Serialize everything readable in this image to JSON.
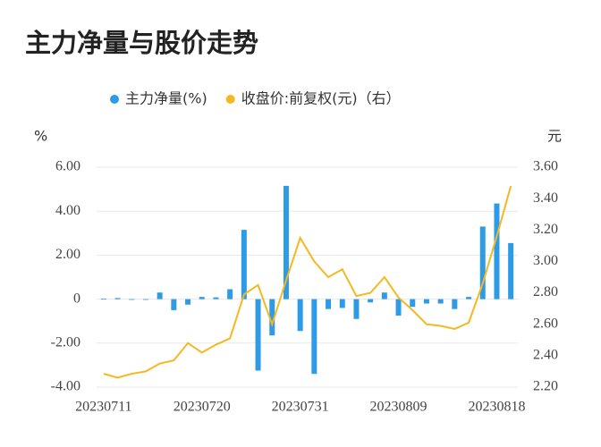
{
  "chart_data": {
    "type": "bar_line",
    "title": "主力净量与股价走势",
    "y_unit": "%",
    "y2_unit": "元",
    "categories": [
      "20230711",
      null,
      null,
      null,
      null,
      null,
      null,
      "20230720",
      null,
      null,
      null,
      null,
      null,
      null,
      "20230731",
      null,
      null,
      null,
      null,
      null,
      null,
      "20230809",
      null,
      null,
      null,
      null,
      null,
      null,
      "20230818",
      null
    ],
    "series": [
      {
        "name": "主力净量(%)",
        "color": "#2e9be6",
        "kind": "bar",
        "axis": "y",
        "values": [
          0.02,
          0.05,
          -0.03,
          -0.03,
          0.3,
          -0.5,
          -0.25,
          0.1,
          0.08,
          0.45,
          3.15,
          -3.25,
          -1.65,
          5.15,
          -1.45,
          -3.4,
          -0.45,
          -0.4,
          -0.9,
          -0.15,
          0.3,
          -0.75,
          -0.35,
          -0.2,
          -0.2,
          -0.45,
          0.1,
          3.3,
          4.35,
          2.55
        ]
      },
      {
        "name": "收盘价:前复权(元)（右）",
        "color": "#f5b821",
        "kind": "line",
        "axis": "y2",
        "values": [
          2.285,
          2.26,
          2.285,
          2.3,
          2.35,
          2.37,
          2.48,
          2.42,
          2.47,
          2.51,
          2.79,
          2.85,
          2.6,
          2.88,
          3.15,
          3.0,
          2.9,
          2.95,
          2.78,
          2.8,
          2.9,
          2.77,
          2.69,
          2.6,
          2.59,
          2.57,
          2.61,
          2.86,
          3.16,
          3.48
        ]
      }
    ],
    "ylim": [
      -4,
      6
    ],
    "yticks": [
      {
        "value": -4,
        "label": "-4.00"
      },
      {
        "value": -2,
        "label": "-2.00"
      },
      0,
      {
        "value": 2,
        "label": "2.00"
      },
      {
        "value": 4,
        "label": "4.00"
      },
      {
        "value": 6,
        "label": "6.00"
      }
    ],
    "y2lim": [
      2.2,
      3.6
    ],
    "y2ticks": [
      {
        "value": 2.2,
        "label": "2.20"
      },
      {
        "value": 2.4,
        "label": "2.40"
      },
      {
        "value": 2.6,
        "label": "2.60"
      },
      {
        "value": 2.8,
        "label": "2.80"
      },
      {
        "value": 3.0,
        "label": "3.00"
      },
      {
        "value": 3.2,
        "label": "3.20"
      },
      {
        "value": 3.4,
        "label": "3.40"
      },
      {
        "value": 3.6,
        "label": "3.60"
      }
    ],
    "grid": true
  }
}
